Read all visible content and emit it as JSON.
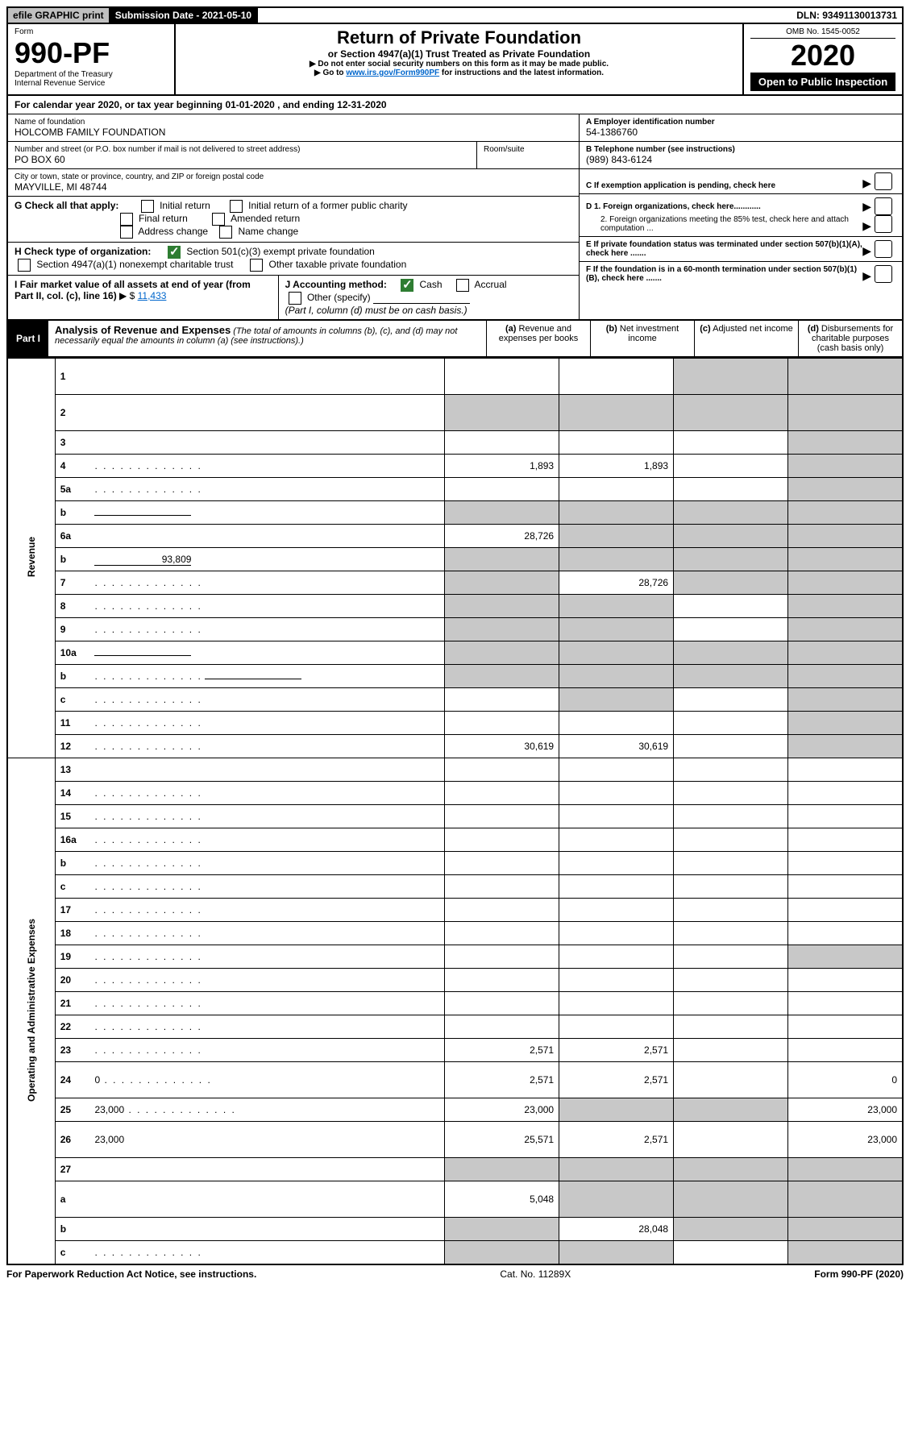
{
  "header_bar": {
    "print_label": "efile GRAPHIC print",
    "submission_label": "Submission Date - 2021-05-10",
    "dln": "DLN: 93491130013731"
  },
  "form_head": {
    "form_word": "Form",
    "form_number": "990-PF",
    "dept1": "Department of the Treasury",
    "dept2": "Internal Revenue Service",
    "title": "Return of Private Foundation",
    "subtitle": "or Section 4947(a)(1) Trust Treated as Private Foundation",
    "instr1": "▶ Do not enter social security numbers on this form as it may be made public.",
    "instr2_pre": "▶ Go to ",
    "instr2_link": "www.irs.gov/Form990PF",
    "instr2_post": " for instructions and the latest information.",
    "omb": "OMB No. 1545-0052",
    "year": "2020",
    "open": "Open to Public Inspection"
  },
  "calendar_line": "For calendar year 2020, or tax year beginning 01-01-2020                               , and ending 12-31-2020",
  "foundation": {
    "name_label": "Name of foundation",
    "name": "HOLCOMB FAMILY FOUNDATION",
    "addr_label": "Number and street (or P.O. box number if mail is not delivered to street address)",
    "addr": "PO BOX 60",
    "room_label": "Room/suite",
    "city_label": "City or town, state or province, country, and ZIP or foreign postal code",
    "city": "MAYVILLE, MI  48744",
    "ein_label": "A Employer identification number",
    "ein": "54-1386760",
    "phone_label": "B Telephone number (see instructions)",
    "phone": "(989) 843-6124",
    "c_label": "C If exemption application is pending, check here",
    "d1": "D 1. Foreign organizations, check here............",
    "d2": "2. Foreign organizations meeting the 85% test, check here and attach computation ...",
    "e_label": "E  If private foundation status was terminated under section 507(b)(1)(A), check here .......",
    "f_label": "F  If the foundation is in a 60-month termination under section 507(b)(1)(B), check here ......."
  },
  "g_block": {
    "g_label": "G Check all that apply:",
    "opts": [
      "Initial return",
      "Initial return of a former public charity",
      "Final return",
      "Amended return",
      "Address change",
      "Name change"
    ],
    "h_label": "H Check type of organization:",
    "h_501": "Section 501(c)(3) exempt private foundation",
    "h_4947": "Section 4947(a)(1) nonexempt charitable trust",
    "h_other": "Other taxable private foundation",
    "i_label": "I Fair market value of all assets at end of year (from Part II, col. (c), line 16)",
    "i_value": "11,433",
    "j_label": "J Accounting method:",
    "j_cash": "Cash",
    "j_accrual": "Accrual",
    "j_other": "Other (specify)",
    "j_note": "(Part I, column (d) must be on cash basis.)"
  },
  "part1": {
    "tag": "Part I",
    "title": "Analysis of Revenue and Expenses",
    "note": " (The total of amounts in columns (b), (c), and (d) may not necessarily equal the amounts in column (a) (see instructions).)",
    "col_a": "(a)   Revenue and expenses per books",
    "col_b": "(b)   Net investment income",
    "col_c": "(c)   Adjusted net income",
    "col_d": "(d)   Disbursements for charitable purposes (cash basis only)"
  },
  "section_labels": {
    "revenue": "Revenue",
    "expenses": "Operating and Administrative Expenses"
  },
  "rows": [
    {
      "n": "1",
      "d": "",
      "a": "",
      "b": "",
      "c": "",
      "gray": [
        "c",
        "d"
      ],
      "tall": true
    },
    {
      "n": "2",
      "d": "",
      "a": "",
      "b": "",
      "c": "",
      "gray": [
        "a",
        "b",
        "c",
        "d"
      ],
      "html": true,
      "tall": true
    },
    {
      "n": "3",
      "d": "",
      "a": "",
      "b": "",
      "c": "",
      "gray": [
        "d"
      ]
    },
    {
      "n": "4",
      "d": "",
      "a": "1,893",
      "b": "1,893",
      "c": "",
      "gray": [
        "d"
      ],
      "dot": true
    },
    {
      "n": "5a",
      "d": "",
      "a": "",
      "b": "",
      "c": "",
      "gray": [
        "d"
      ],
      "dot": true
    },
    {
      "n": "b",
      "d": "",
      "a": "",
      "b": "",
      "c": "",
      "gray": [
        "a",
        "b",
        "c",
        "d"
      ],
      "inline": true
    },
    {
      "n": "6a",
      "d": "",
      "a": "28,726",
      "b": "",
      "c": "",
      "gray": [
        "b",
        "c",
        "d"
      ]
    },
    {
      "n": "b",
      "d": "",
      "a": "",
      "b": "",
      "c": "",
      "gray": [
        "a",
        "b",
        "c",
        "d"
      ],
      "inline": true,
      "inline_val": "93,809"
    },
    {
      "n": "7",
      "d": "",
      "a": "",
      "b": "28,726",
      "c": "",
      "gray": [
        "a",
        "c",
        "d"
      ],
      "dot": true
    },
    {
      "n": "8",
      "d": "",
      "a": "",
      "b": "",
      "c": "",
      "gray": [
        "a",
        "b",
        "d"
      ],
      "dot": true
    },
    {
      "n": "9",
      "d": "",
      "a": "",
      "b": "",
      "c": "",
      "gray": [
        "a",
        "b",
        "d"
      ],
      "dot": true
    },
    {
      "n": "10a",
      "d": "",
      "a": "",
      "b": "",
      "c": "",
      "gray": [
        "a",
        "b",
        "c",
        "d"
      ],
      "inline": true
    },
    {
      "n": "b",
      "d": "",
      "a": "",
      "b": "",
      "c": "",
      "gray": [
        "a",
        "b",
        "c",
        "d"
      ],
      "inline": true,
      "dot": true
    },
    {
      "n": "c",
      "d": "",
      "a": "",
      "b": "",
      "c": "",
      "gray": [
        "b",
        "d"
      ],
      "dot": true
    },
    {
      "n": "11",
      "d": "",
      "a": "",
      "b": "",
      "c": "",
      "gray": [
        "d"
      ],
      "dot": true
    },
    {
      "n": "12",
      "d": "",
      "a": "30,619",
      "b": "30,619",
      "c": "",
      "gray": [
        "d"
      ],
      "html": true,
      "dot": true
    }
  ],
  "exp_rows": [
    {
      "n": "13",
      "d": "",
      "a": "",
      "b": "",
      "c": ""
    },
    {
      "n": "14",
      "d": "",
      "a": "",
      "b": "",
      "c": "",
      "dot": true
    },
    {
      "n": "15",
      "d": "",
      "a": "",
      "b": "",
      "c": "",
      "dot": true
    },
    {
      "n": "16a",
      "d": "",
      "a": "",
      "b": "",
      "c": "",
      "dot": true
    },
    {
      "n": "b",
      "d": "",
      "a": "",
      "b": "",
      "c": "",
      "dot": true
    },
    {
      "n": "c",
      "d": "",
      "a": "",
      "b": "",
      "c": "",
      "dot": true
    },
    {
      "n": "17",
      "d": "",
      "a": "",
      "b": "",
      "c": "",
      "dot": true
    },
    {
      "n": "18",
      "d": "",
      "a": "",
      "b": "",
      "c": "",
      "dot": true
    },
    {
      "n": "19",
      "d": "",
      "a": "",
      "b": "",
      "c": "",
      "gray": [
        "d"
      ],
      "dot": true
    },
    {
      "n": "20",
      "d": "",
      "a": "",
      "b": "",
      "c": "",
      "dot": true
    },
    {
      "n": "21",
      "d": "",
      "a": "",
      "b": "",
      "c": "",
      "dot": true
    },
    {
      "n": "22",
      "d": "",
      "a": "",
      "b": "",
      "c": "",
      "dot": true
    },
    {
      "n": "23",
      "d": "",
      "a": "2,571",
      "b": "2,571",
      "c": "",
      "dot": true
    },
    {
      "n": "24",
      "d": "0",
      "a": "2,571",
      "b": "2,571",
      "c": "",
      "html": true,
      "tall": true,
      "dot": true
    },
    {
      "n": "25",
      "d": "23,000",
      "a": "23,000",
      "b": "",
      "c": "",
      "gray": [
        "b",
        "c"
      ],
      "dot": true
    },
    {
      "n": "26",
      "d": "23,000",
      "a": "25,571",
      "b": "2,571",
      "c": "",
      "html": true,
      "tall": true
    },
    {
      "n": "27",
      "d": "",
      "a": "",
      "b": "",
      "c": "",
      "gray": [
        "a",
        "b",
        "c",
        "d"
      ]
    },
    {
      "n": "a",
      "d": "",
      "a": "5,048",
      "b": "",
      "c": "",
      "gray": [
        "b",
        "c",
        "d"
      ],
      "html": true,
      "tall": true
    },
    {
      "n": "b",
      "d": "",
      "a": "",
      "b": "28,048",
      "c": "",
      "gray": [
        "a",
        "c",
        "d"
      ],
      "html": true
    },
    {
      "n": "c",
      "d": "",
      "a": "",
      "b": "",
      "c": "",
      "gray": [
        "a",
        "b",
        "d"
      ],
      "html": true,
      "dot": true
    }
  ],
  "footer": {
    "left": "For Paperwork Reduction Act Notice, see instructions.",
    "mid": "Cat. No. 11289X",
    "right": "Form 990-PF (2020)"
  }
}
